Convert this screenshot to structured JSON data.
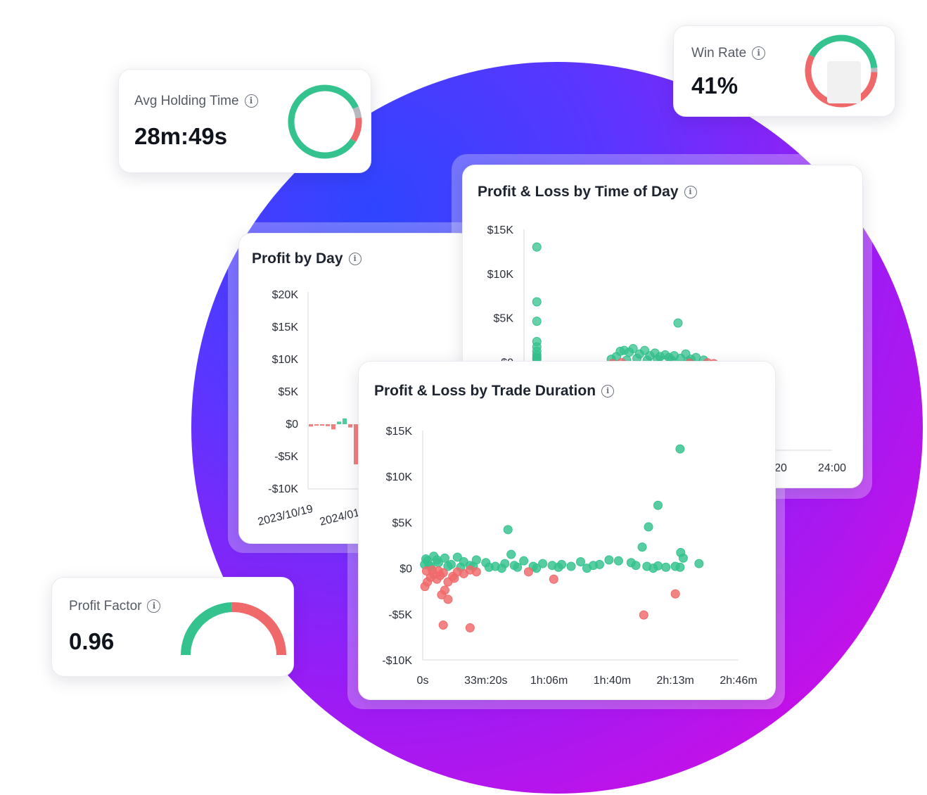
{
  "metrics": {
    "avg_holding_time": {
      "label": "Avg Holding Time",
      "value": "28m:49s",
      "win_fraction": 0.84,
      "neutral_fraction": 0.05
    },
    "win_rate": {
      "label": "Win Rate",
      "value": "41%",
      "win_fraction": 0.41,
      "neutral_fraction": 0.02
    },
    "profit_factor": {
      "label": "Profit Factor",
      "value": "0.96",
      "win_fraction": 0.49
    }
  },
  "icons": {
    "info": "info-icon"
  },
  "colors": {
    "profit": "#34c28e",
    "loss": "#f0696a",
    "neutral": "#b5b8bf",
    "accent": "#6c2cff"
  },
  "chart_data": [
    {
      "id": "profit_by_day",
      "type": "bar",
      "title": "Profit by Day",
      "ylim": [
        -10000,
        20000
      ],
      "y_ticks": [
        {
          "v": 20000,
          "label": "$20K"
        },
        {
          "v": 15000,
          "label": "$15K"
        },
        {
          "v": 10000,
          "label": "$10K"
        },
        {
          "v": 5000,
          "label": "$5K"
        },
        {
          "v": 0,
          "label": "$0"
        },
        {
          "v": -5000,
          "label": "-$5K"
        },
        {
          "v": -10000,
          "label": "-$10K"
        }
      ],
      "x_ticks": [
        "2023/10/19",
        "2024/01/"
      ],
      "bars": [
        {
          "date": "2023/10/19",
          "value": -350
        },
        {
          "date": "2023/10/26",
          "value": -100
        },
        {
          "date": "2023/11/02",
          "value": -200
        },
        {
          "date": "2023/11/09",
          "value": -300
        },
        {
          "date": "2023/11/16",
          "value": -800
        },
        {
          "date": "2023/11/23",
          "value": 400
        },
        {
          "date": "2023/11/30",
          "value": 900
        },
        {
          "date": "2023/12/07",
          "value": -500
        },
        {
          "date": "2023/12/14",
          "value": -6200
        }
      ]
    },
    {
      "id": "pnl_by_time_of_day",
      "type": "scatter",
      "title": "Profit & Loss by Time of Day",
      "ylim": [
        -10000,
        15000
      ],
      "xlim": [
        0,
        24
      ],
      "y_ticks": [
        {
          "v": 15000,
          "label": "$15K"
        },
        {
          "v": 10000,
          "label": "$10K"
        },
        {
          "v": 5000,
          "label": "$5K"
        },
        {
          "v": 0,
          "label": "$0"
        }
      ],
      "x_ticks": [
        {
          "v": 20,
          "label": "20"
        },
        {
          "v": 24,
          "label": "24:00"
        }
      ],
      "points": [
        {
          "x": 1.0,
          "y": 13000
        },
        {
          "x": 1.0,
          "y": 6800
        },
        {
          "x": 1.0,
          "y": 4600
        },
        {
          "x": 1.0,
          "y": 2300
        },
        {
          "x": 1.0,
          "y": 1700
        },
        {
          "x": 1.0,
          "y": 1200
        },
        {
          "x": 1.0,
          "y": 800
        },
        {
          "x": 1.0,
          "y": 500
        },
        {
          "x": 1.0,
          "y": 300
        },
        {
          "x": 12.0,
          "y": 4400
        },
        {
          "x": 7.5,
          "y": 1200
        },
        {
          "x": 7.8,
          "y": 1300
        },
        {
          "x": 8.2,
          "y": 1100
        },
        {
          "x": 8.5,
          "y": 1500
        },
        {
          "x": 9.0,
          "y": 900
        },
        {
          "x": 9.4,
          "y": 1300
        },
        {
          "x": 9.8,
          "y": 700
        },
        {
          "x": 10.2,
          "y": 1000
        },
        {
          "x": 10.6,
          "y": 600
        },
        {
          "x": 11.0,
          "y": 800
        },
        {
          "x": 11.3,
          "y": 500
        },
        {
          "x": 11.7,
          "y": 700
        },
        {
          "x": 12.2,
          "y": 400
        },
        {
          "x": 12.6,
          "y": 900
        },
        {
          "x": 13.0,
          "y": 300
        },
        {
          "x": 13.4,
          "y": 500
        },
        {
          "x": 6.8,
          "y": 300
        },
        {
          "x": 7.2,
          "y": 600
        },
        {
          "x": 8.0,
          "y": 200
        },
        {
          "x": 8.8,
          "y": 400
        },
        {
          "x": 9.6,
          "y": 200
        },
        {
          "x": 10.4,
          "y": 300
        },
        {
          "x": 11.5,
          "y": 200
        },
        {
          "x": 12.8,
          "y": 100
        },
        {
          "x": 14.0,
          "y": 200
        },
        {
          "x": 6.9,
          "y": -200
        },
        {
          "x": 7.6,
          "y": -100
        },
        {
          "x": 12.9,
          "y": -150
        },
        {
          "x": 14.3,
          "y": -100
        },
        {
          "x": 14.8,
          "y": -200
        }
      ]
    },
    {
      "id": "pnl_by_trade_duration",
      "type": "scatter",
      "title": "Profit & Loss by Trade Duration",
      "ylim": [
        -10000,
        15000
      ],
      "xlim": [
        0,
        10000
      ],
      "y_ticks": [
        {
          "v": 15000,
          "label": "$15K"
        },
        {
          "v": 10000,
          "label": "$10K"
        },
        {
          "v": 5000,
          "label": "$5K"
        },
        {
          "v": 0,
          "label": "$0"
        },
        {
          "v": -5000,
          "label": "-$5K"
        },
        {
          "v": -10000,
          "label": "-$10K"
        }
      ],
      "x_ticks": [
        {
          "v": 0,
          "label": "0s"
        },
        {
          "v": 2000,
          "label": "33m:20s"
        },
        {
          "v": 4000,
          "label": "1h:06m"
        },
        {
          "v": 6000,
          "label": "1h:40m"
        },
        {
          "v": 8000,
          "label": "2h:13m"
        },
        {
          "v": 10000,
          "label": "2h:46m"
        }
      ],
      "points": [
        {
          "x": 8150,
          "y": 13000
        },
        {
          "x": 7450,
          "y": 6850
        },
        {
          "x": 7150,
          "y": 4500
        },
        {
          "x": 2700,
          "y": 4200
        },
        {
          "x": 6950,
          "y": 2300
        },
        {
          "x": 8170,
          "y": 1700
        },
        {
          "x": 2800,
          "y": 1500
        },
        {
          "x": 8000,
          "y": 200
        },
        {
          "x": 8150,
          "y": 100
        },
        {
          "x": 8750,
          "y": 500
        },
        {
          "x": 8250,
          "y": 1100
        },
        {
          "x": 6200,
          "y": 800
        },
        {
          "x": 6600,
          "y": 600
        },
        {
          "x": 6750,
          "y": 300
        },
        {
          "x": 7100,
          "y": 200
        },
        {
          "x": 7300,
          "y": 0
        },
        {
          "x": 7450,
          "y": 250
        },
        {
          "x": 7700,
          "y": 100
        },
        {
          "x": 5600,
          "y": 400
        },
        {
          "x": 5900,
          "y": 900
        },
        {
          "x": 5400,
          "y": 300
        },
        {
          "x": 5000,
          "y": 700
        },
        {
          "x": 4700,
          "y": 200
        },
        {
          "x": 4400,
          "y": 400
        },
        {
          "x": 4100,
          "y": 300
        },
        {
          "x": 3800,
          "y": 500
        },
        {
          "x": 3500,
          "y": 200
        },
        {
          "x": 3200,
          "y": 800
        },
        {
          "x": 2900,
          "y": 300
        },
        {
          "x": 2600,
          "y": 500
        },
        {
          "x": 2300,
          "y": 200
        },
        {
          "x": 2000,
          "y": 600
        },
        {
          "x": 1700,
          "y": 900
        },
        {
          "x": 1500,
          "y": 300
        },
        {
          "x": 1300,
          "y": 700
        },
        {
          "x": 1100,
          "y": 1200
        },
        {
          "x": 900,
          "y": 400
        },
        {
          "x": 700,
          "y": 1100
        },
        {
          "x": 500,
          "y": 600
        },
        {
          "x": 350,
          "y": 1300
        },
        {
          "x": 200,
          "y": 300
        },
        {
          "x": 150,
          "y": 800
        },
        {
          "x": 100,
          "y": 1000
        },
        {
          "x": 60,
          "y": 400
        },
        {
          "x": 250,
          "y": 200
        },
        {
          "x": 450,
          "y": 900
        },
        {
          "x": 800,
          "y": 200
        },
        {
          "x": 1200,
          "y": 100
        },
        {
          "x": 1600,
          "y": 200
        },
        {
          "x": 2100,
          "y": 100
        },
        {
          "x": 2500,
          "y": 0
        },
        {
          "x": 3000,
          "y": 100
        },
        {
          "x": 3600,
          "y": 0
        },
        {
          "x": 4300,
          "y": 100
        },
        {
          "x": 5200,
          "y": 0
        },
        {
          "x": 8000,
          "y": -2800
        },
        {
          "x": 7000,
          "y": -5100
        },
        {
          "x": 1500,
          "y": -6500
        },
        {
          "x": 650,
          "y": -6200
        },
        {
          "x": 800,
          "y": -3400
        },
        {
          "x": 600,
          "y": -2900
        },
        {
          "x": 700,
          "y": -2400
        },
        {
          "x": 70,
          "y": -2000
        },
        {
          "x": 150,
          "y": -1500
        },
        {
          "x": 250,
          "y": -1000
        },
        {
          "x": 350,
          "y": -700
        },
        {
          "x": 450,
          "y": -1200
        },
        {
          "x": 550,
          "y": -800
        },
        {
          "x": 650,
          "y": -500
        },
        {
          "x": 800,
          "y": -1500
        },
        {
          "x": 950,
          "y": -900
        },
        {
          "x": 1100,
          "y": -400
        },
        {
          "x": 1300,
          "y": -600
        },
        {
          "x": 1500,
          "y": -200
        },
        {
          "x": 1700,
          "y": -400
        },
        {
          "x": 3350,
          "y": -400
        },
        {
          "x": 4150,
          "y": -1200
        },
        {
          "x": 120,
          "y": -300
        },
        {
          "x": 300,
          "y": -200
        },
        {
          "x": 500,
          "y": -300
        },
        {
          "x": 1000,
          "y": -1100
        }
      ]
    }
  ]
}
